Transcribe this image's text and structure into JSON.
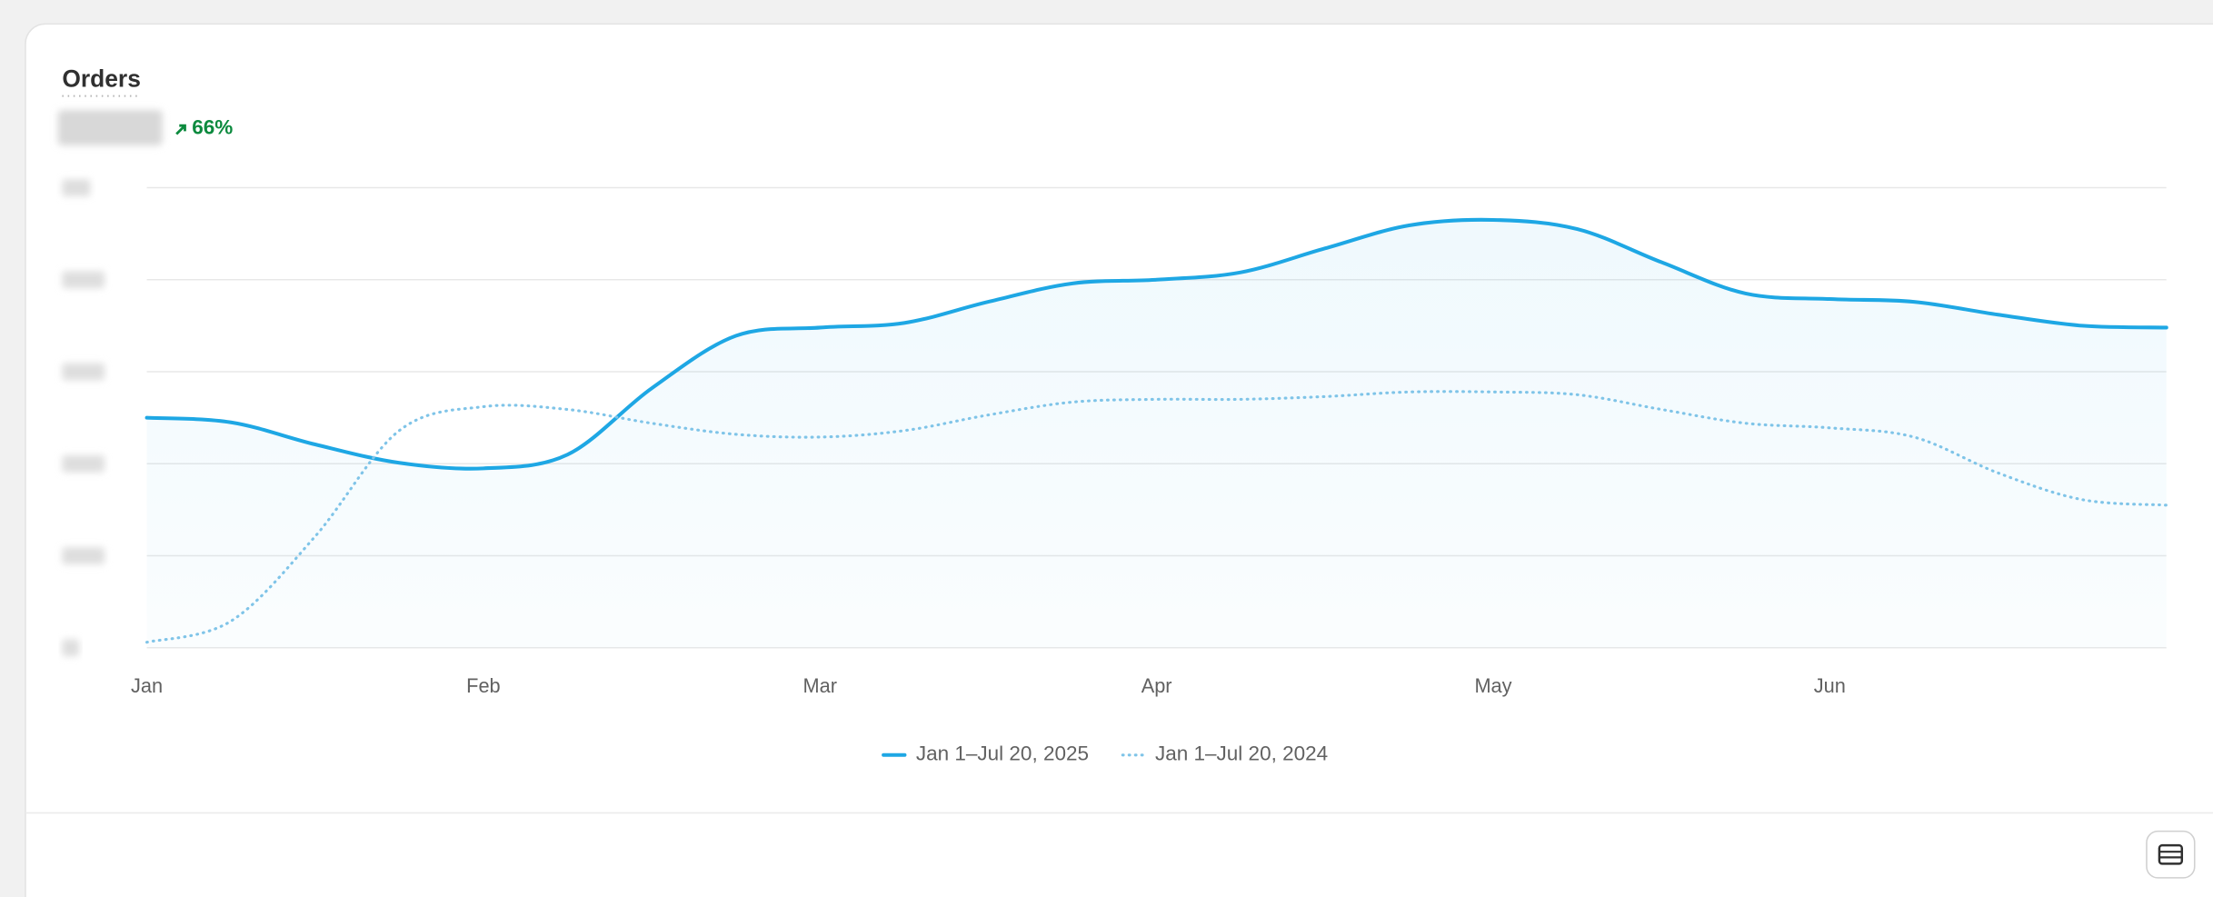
{
  "title": "Orders",
  "change": "66%",
  "chart_data": {
    "type": "line",
    "categories": [
      "Jan",
      null,
      null,
      null,
      "Feb",
      null,
      null,
      null,
      "Mar",
      null,
      null,
      null,
      "Apr",
      null,
      null,
      null,
      "May",
      null,
      null,
      null,
      "Jun",
      null,
      null,
      null,
      null
    ],
    "series": [
      {
        "name": "Jan 1–Jul 20, 2025",
        "color": "#1ea7e4",
        "style": "solid",
        "values": [
          2.5,
          2.45,
          2.21,
          2.01,
          1.95,
          2.1,
          2.82,
          3.39,
          3.48,
          3.53,
          3.76,
          3.96,
          4.0,
          4.08,
          4.34,
          4.59,
          4.65,
          4.55,
          4.19,
          3.85,
          3.79,
          3.76,
          3.62,
          3.5,
          3.48
        ]
      },
      {
        "name": "Jan 1–Jul 20, 2024",
        "color": "#7fc4e8",
        "style": "dotted",
        "values": [
          0.06,
          0.29,
          1.21,
          2.36,
          2.62,
          2.59,
          2.44,
          2.32,
          2.29,
          2.36,
          2.53,
          2.67,
          2.7,
          2.7,
          2.73,
          2.78,
          2.78,
          2.75,
          2.59,
          2.44,
          2.39,
          2.29,
          1.9,
          1.61,
          1.55
        ]
      }
    ],
    "ylim": [
      0,
      5
    ],
    "yticks": [
      0,
      1,
      2,
      3,
      4,
      5
    ],
    "grid": true,
    "legend": "bottom"
  }
}
